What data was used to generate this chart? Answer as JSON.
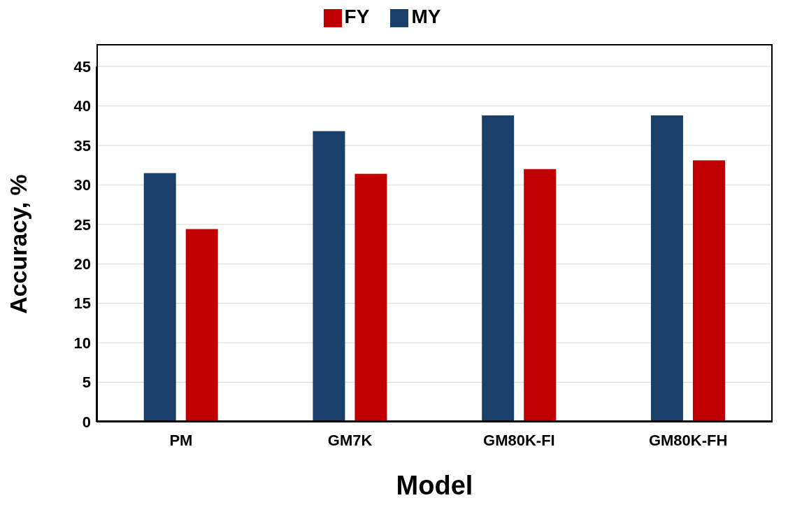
{
  "chart_data": {
    "type": "bar",
    "xlabel": "Model",
    "ylabel": "Accuracy, %",
    "categories": [
      "PM",
      "GM7K",
      "GM80K-FI",
      "GM80K-FH"
    ],
    "series": [
      {
        "name": "MY",
        "color": "#1b3f6b",
        "values": [
          31.5,
          36.8,
          38.8,
          38.8
        ]
      },
      {
        "name": "FY",
        "color": "#c00000",
        "values": [
          24.4,
          31.4,
          32.0,
          33.1
        ]
      }
    ],
    "ylim": [
      0,
      45
    ],
    "yticks": [
      0,
      5,
      10,
      15,
      20,
      25,
      30,
      35,
      40,
      45
    ],
    "grid": "y",
    "legend": "top"
  }
}
